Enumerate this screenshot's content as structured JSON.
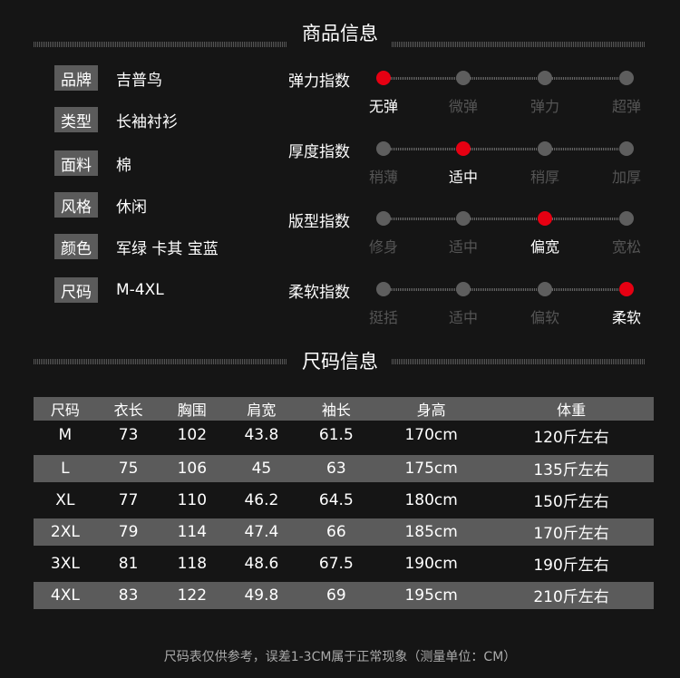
{
  "product_section": {
    "title": "商品信息"
  },
  "attributes": [
    {
      "key": "品牌",
      "value": "吉普鸟"
    },
    {
      "key": "类型",
      "value": "长袖衬衫"
    },
    {
      "key": "面料",
      "value": "棉"
    },
    {
      "key": "风格",
      "value": "休闲"
    },
    {
      "key": "颜色",
      "value": "军绿 卡其 宝蓝"
    },
    {
      "key": "尺码",
      "value": "M-4XL"
    }
  ],
  "indices": [
    {
      "label": "弹力指数",
      "options": [
        "无弹",
        "微弹",
        "弹力",
        "超弹"
      ],
      "selected": 0
    },
    {
      "label": "厚度指数",
      "options": [
        "稍薄",
        "适中",
        "稍厚",
        "加厚"
      ],
      "selected": 1
    },
    {
      "label": "版型指数",
      "options": [
        "修身",
        "适中",
        "偏宽",
        "宽松"
      ],
      "selected": 2
    },
    {
      "label": "柔软指数",
      "options": [
        "挺括",
        "适中",
        "偏软",
        "柔软"
      ],
      "selected": 3
    }
  ],
  "size_section": {
    "title": "尺码信息",
    "headers": [
      "尺码",
      "衣长",
      "胸围",
      "肩宽",
      "袖长",
      "身高",
      "体重"
    ],
    "rows": [
      [
        "M",
        "73",
        "102",
        "43.8",
        "61.5",
        "170cm",
        "120斤左右"
      ],
      [
        "L",
        "75",
        "106",
        "45",
        "63",
        "175cm",
        "135斤左右"
      ],
      [
        "XL",
        "77",
        "110",
        "46.2",
        "64.5",
        "180cm",
        "150斤左右"
      ],
      [
        "2XL",
        "79",
        "114",
        "47.4",
        "66",
        "185cm",
        "170斤左右"
      ],
      [
        "3XL",
        "81",
        "118",
        "48.6",
        "67.5",
        "190cm",
        "190斤左右"
      ],
      [
        "4XL",
        "83",
        "122",
        "49.8",
        "69",
        "195cm",
        "210斤左右"
      ]
    ],
    "note": "尺码表仅供参考，误差1-3CM属于正常现象（测量单位：CM）"
  },
  "colors": {
    "accent": "#e60012",
    "inactive_dot": "#5e5e5e",
    "label_bg": "#5b5b5b"
  }
}
